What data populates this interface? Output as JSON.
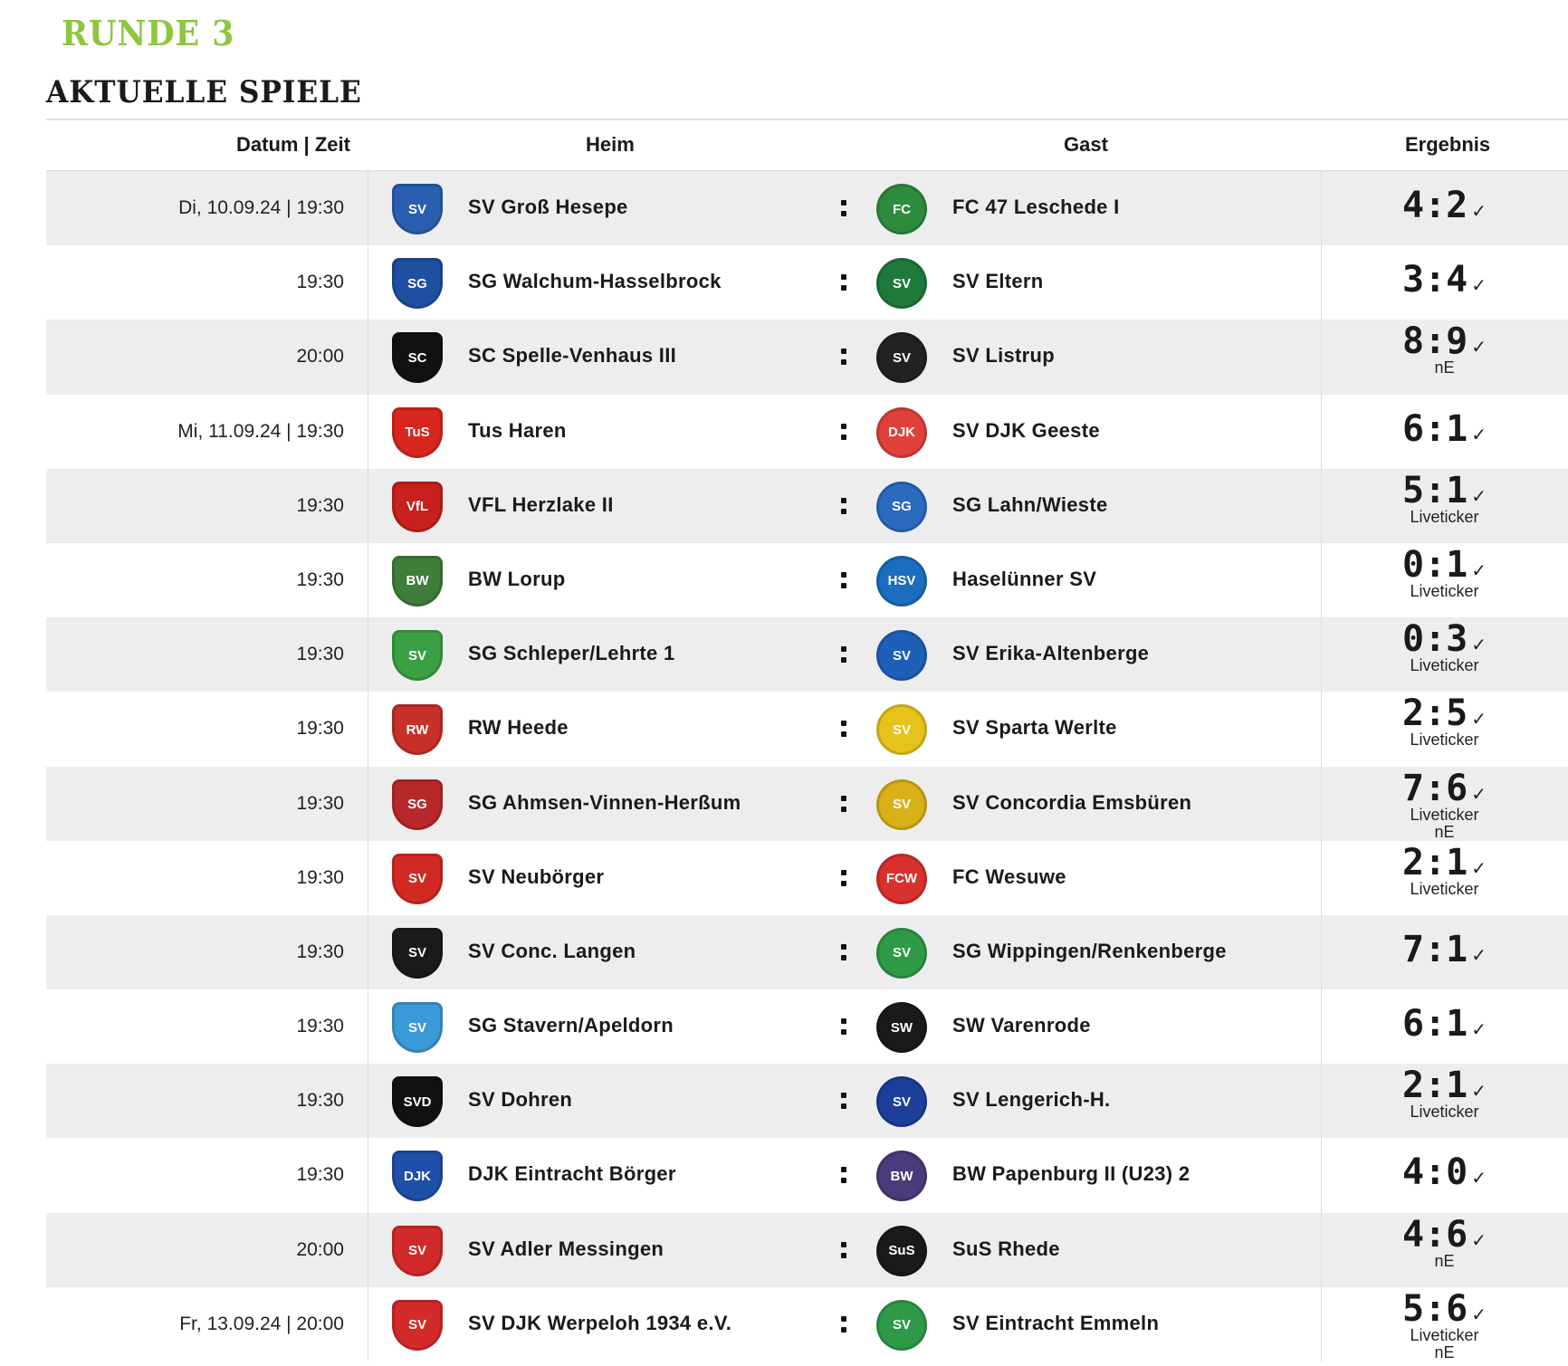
{
  "round_title": "RUNDE 3",
  "section_title": "AKTUELLE SPIELE",
  "columns": {
    "date": "Datum | Zeit",
    "home": "Heim",
    "away": "Gast",
    "result": "Ergebnis"
  },
  "colors": {
    "accent": "#8dc63f",
    "row_alt": "#ededed"
  },
  "matches": [
    {
      "date": "Di, 10.09.24 | 19:30",
      "home": "SV Groß Hesepe",
      "home_logo": "SV",
      "home_color": "#2a5fb0",
      "away": "FC 47 Leschede I",
      "away_logo": "FC",
      "away_color": "#2e8b3e",
      "score": "4:2",
      "sub": []
    },
    {
      "date": "19:30",
      "home": "SG Walchum-Hasselbrock",
      "home_logo": "SG",
      "home_color": "#1e4fa0",
      "away": "SV Eltern",
      "away_logo": "SV",
      "away_color": "#1e7a3a",
      "score": "3:4",
      "sub": []
    },
    {
      "date": "20:00",
      "home": "SC Spelle-Venhaus III",
      "home_logo": "SC",
      "home_color": "#111111",
      "away": "SV Listrup",
      "away_logo": "SV",
      "away_color": "#222222",
      "score": "8:9",
      "sub": [
        "nE"
      ]
    },
    {
      "date": "Mi, 11.09.24 | 19:30",
      "home": "Tus Haren",
      "home_logo": "TuS",
      "home_color": "#d7261e",
      "away": "SV DJK Geeste",
      "away_logo": "DJK",
      "away_color": "#e0403a",
      "score": "6:1",
      "sub": []
    },
    {
      "date": "19:30",
      "home": "VFL Herzlake II",
      "home_logo": "VfL",
      "home_color": "#c8201c",
      "away": "SG Lahn/Wieste",
      "away_logo": "SG",
      "away_color": "#2a6bc0",
      "score": "5:1",
      "sub": [
        "Liveticker"
      ]
    },
    {
      "date": "19:30",
      "home": "BW Lorup",
      "home_logo": "BW",
      "home_color": "#3f7d3a",
      "away": "Haselünner SV",
      "away_logo": "HSV",
      "away_color": "#1c6dbd",
      "score": "0:1",
      "sub": [
        "Liveticker"
      ]
    },
    {
      "date": "19:30",
      "home": "SG Schleper/Lehrte 1",
      "home_logo": "SV",
      "home_color": "#3aa043",
      "away": "SV Erika-Altenberge",
      "away_logo": "SV",
      "away_color": "#1f5fb8",
      "score": "0:3",
      "sub": [
        "Liveticker"
      ]
    },
    {
      "date": "19:30",
      "home": "RW Heede",
      "home_logo": "RW",
      "home_color": "#c8302a",
      "away": "SV Sparta Werlte",
      "away_logo": "SV",
      "away_color": "#e6c21a",
      "score": "2:5",
      "sub": [
        "Liveticker"
      ]
    },
    {
      "date": "19:30",
      "home": "SG Ahmsen-Vinnen-Herßum",
      "home_logo": "SG",
      "home_color": "#b8282a",
      "away": "SV Concordia Emsbüren",
      "away_logo": "SV",
      "away_color": "#d8b018",
      "score": "7:6",
      "sub": [
        "Liveticker",
        "nE"
      ]
    },
    {
      "date": "19:30",
      "home": "SV Neubörger",
      "home_logo": "SV",
      "home_color": "#d22a22",
      "away": "FC Wesuwe",
      "away_logo": "FCW",
      "away_color": "#d8302e",
      "score": "2:1",
      "sub": [
        "Liveticker"
      ]
    },
    {
      "date": "19:30",
      "home": "SV Conc. Langen",
      "home_logo": "SV",
      "home_color": "#1a1a1a",
      "away": "SG Wippingen/Renkenberge",
      "away_logo": "SV",
      "away_color": "#2f9a45",
      "score": "7:1",
      "sub": []
    },
    {
      "date": "19:30",
      "home": "SG Stavern/Apeldorn",
      "home_logo": "SV",
      "home_color": "#3a9ad8",
      "away": "SW Varenrode",
      "away_logo": "SW",
      "away_color": "#1a1a1a",
      "score": "6:1",
      "sub": []
    },
    {
      "date": "19:30",
      "home": "SV Dohren",
      "home_logo": "SVD",
      "home_color": "#111111",
      "away": "SV Lengerich-H.",
      "away_logo": "SV",
      "away_color": "#1d3f9a",
      "score": "2:1",
      "sub": [
        "Liveticker"
      ]
    },
    {
      "date": "19:30",
      "home": "DJK Eintracht Börger",
      "home_logo": "DJK",
      "home_color": "#1f4fa8",
      "away": "BW Papenburg II (U23) 2",
      "away_logo": "BW",
      "away_color": "#4b3b7a",
      "score": "4:0",
      "sub": []
    },
    {
      "date": "20:00",
      "home": "SV Adler Messingen",
      "home_logo": "SV",
      "home_color": "#d22a2a",
      "away": "SuS Rhede",
      "away_logo": "SuS",
      "away_color": "#1a1a1a",
      "score": "4:6",
      "sub": [
        "nE"
      ]
    },
    {
      "date": "Fr, 13.09.24 | 20:00",
      "home": "SV DJK Werpeloh 1934 e.V.",
      "home_logo": "SV",
      "home_color": "#d42a2a",
      "away": "SV Eintracht Emmeln",
      "away_logo": "SV",
      "away_color": "#2e9a48",
      "score": "5:6",
      "sub": [
        "Liveticker",
        "nE"
      ]
    }
  ]
}
